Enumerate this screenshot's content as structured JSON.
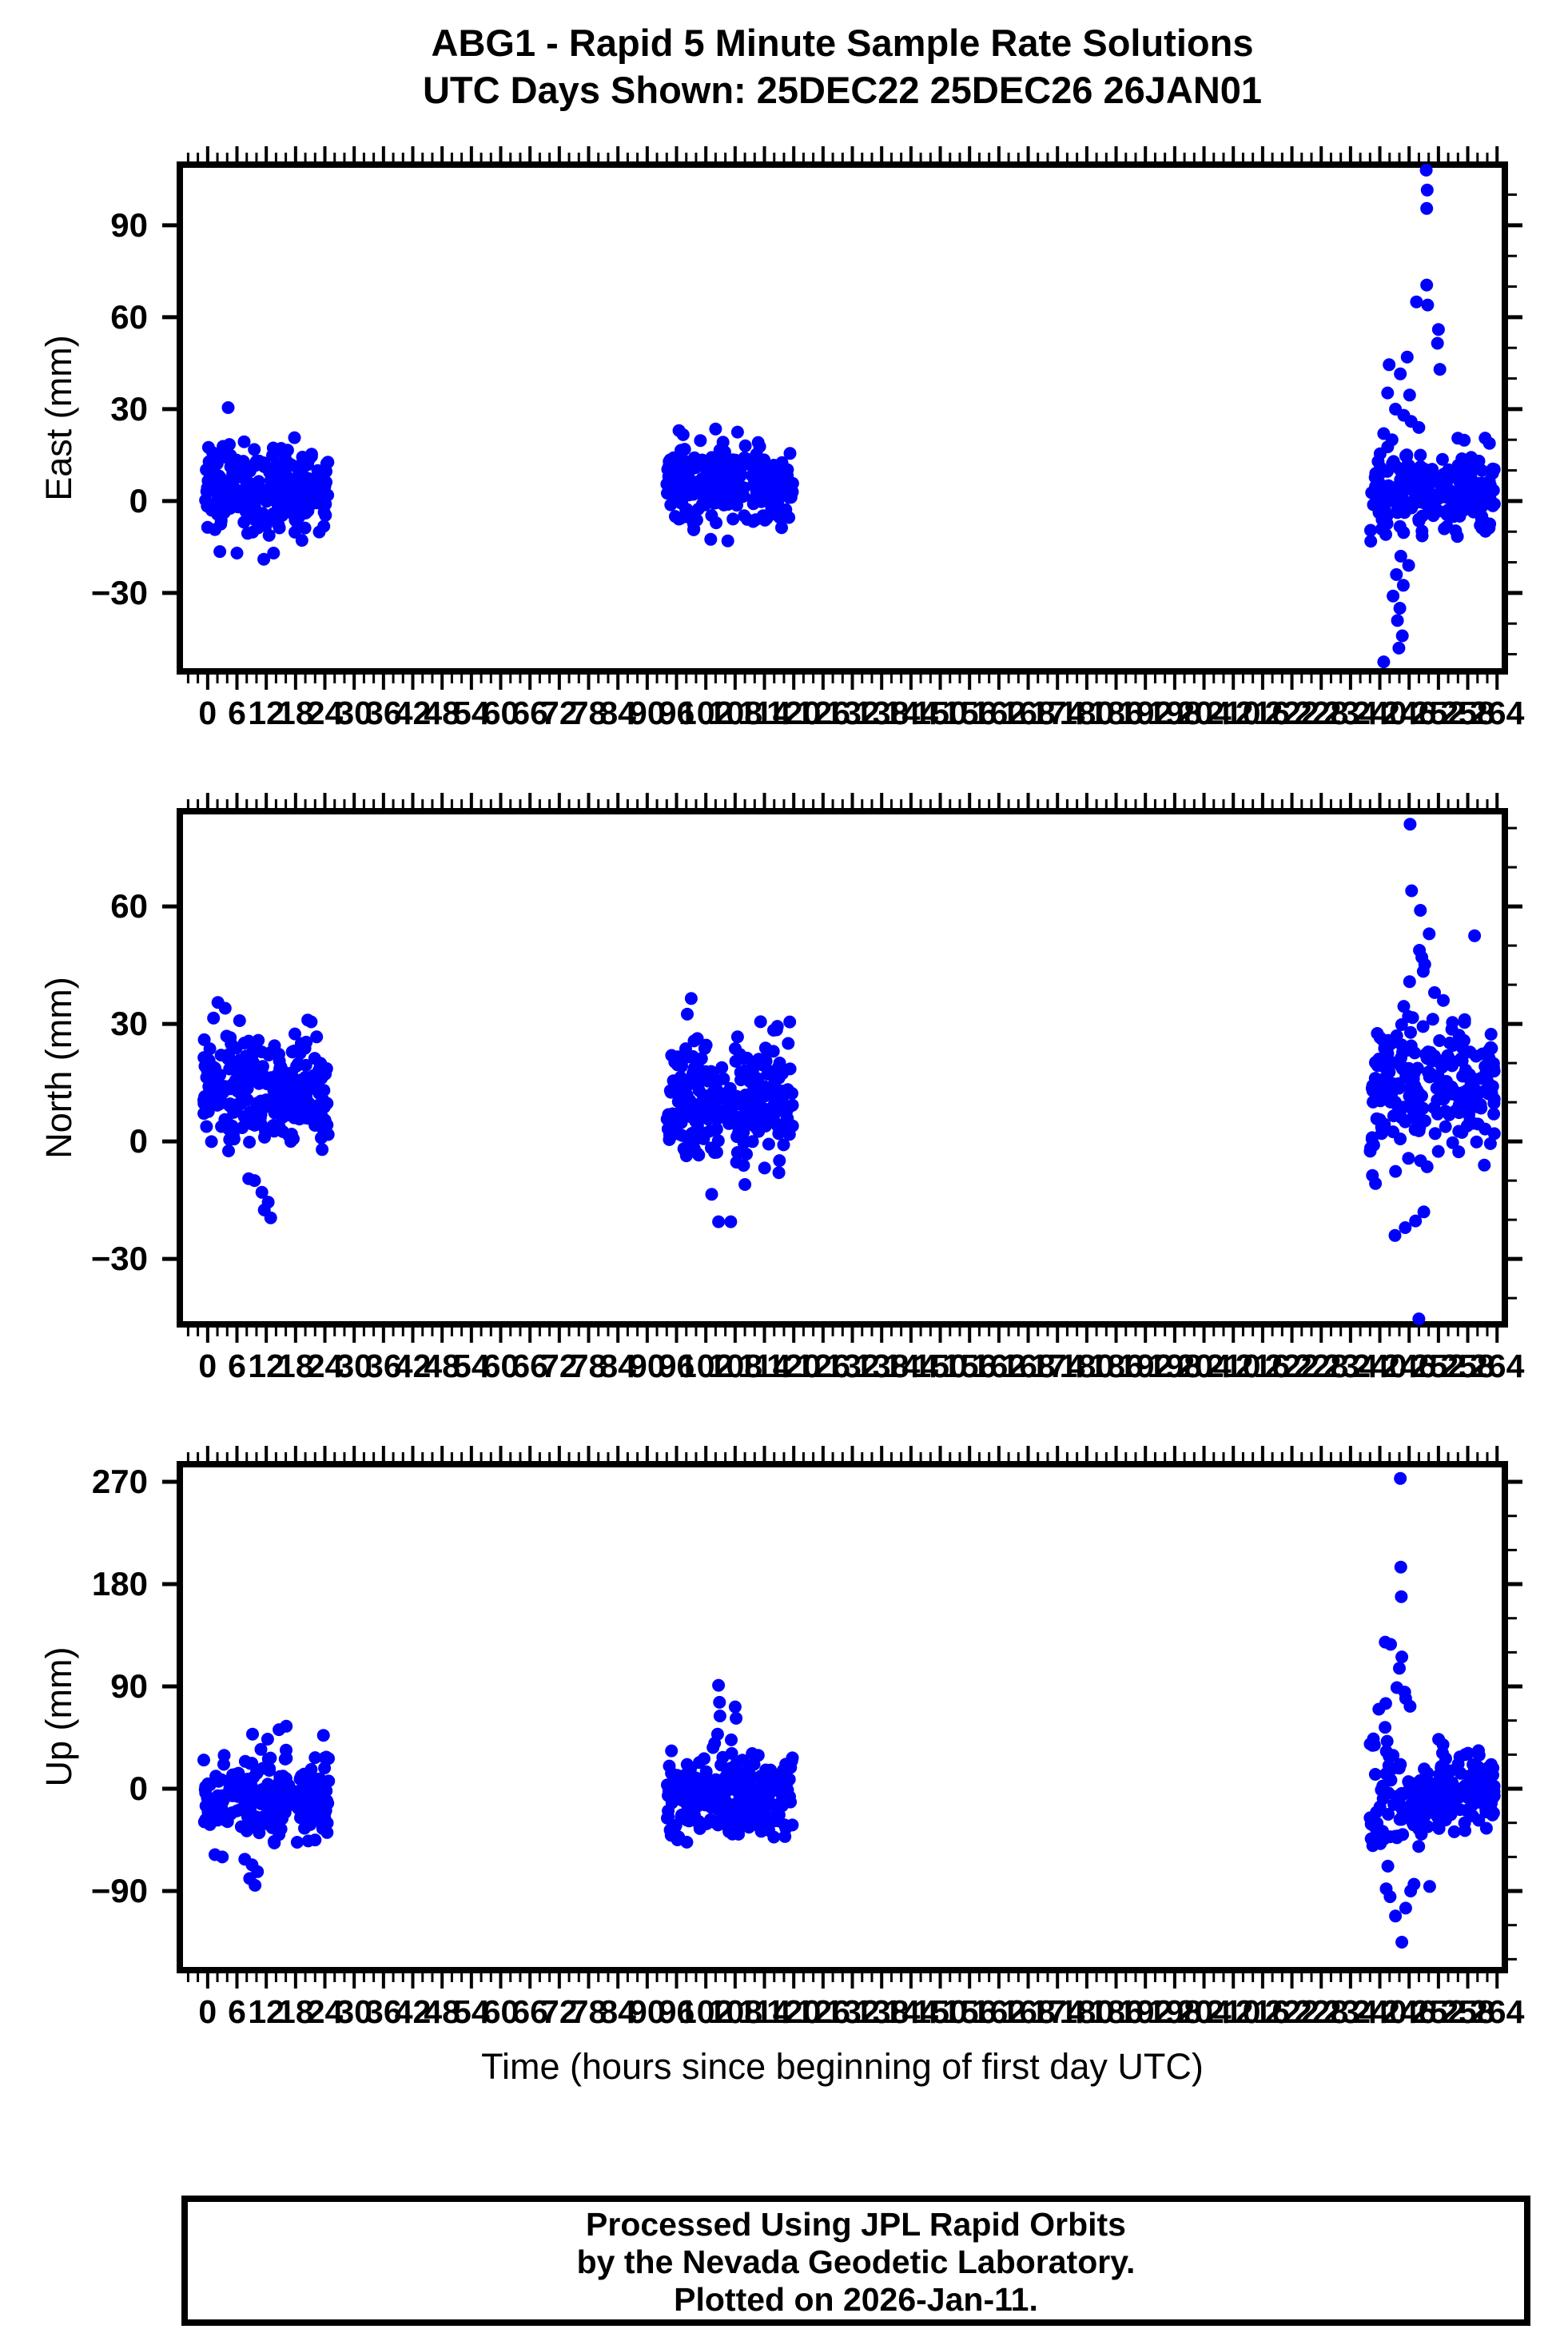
{
  "title": {
    "line1": "ABG1 - Rapid 5 Minute Sample Rate Solutions",
    "line2": "UTC Days Shown:  25DEC22 25DEC26 26JAN01"
  },
  "xlabel": "Time (hours since beginning of first day UTC)",
  "footer": {
    "line1": "Processed Using JPL Rapid Orbits",
    "line2": "by the Nevada Geodetic Laboratory.",
    "line3": "Plotted on 2026-Jan-11."
  },
  "colors": {
    "point": "#0000ff",
    "frame": "#000000",
    "background": "#ffffff"
  },
  "x_axis": {
    "major_tick_values": [
      0,
      6,
      12,
      18,
      24,
      30,
      36,
      42,
      48,
      54,
      60,
      66,
      72,
      78,
      84,
      90,
      96,
      102,
      108,
      114,
      120,
      126,
      132,
      138,
      144,
      150,
      156,
      162,
      168,
      174,
      180,
      186,
      192,
      198,
      204,
      210,
      216,
      222,
      228,
      234,
      240,
      246,
      252,
      258,
      264
    ],
    "major_tick_labels": [
      "0",
      "6",
      "12",
      "18",
      "24",
      "30",
      "36",
      "42",
      "48",
      "54",
      "60",
      "66",
      "72",
      "78",
      "84",
      "90",
      "96",
      "102",
      "108",
      "114",
      "120",
      "126",
      "132",
      "138",
      "144",
      "150",
      "156",
      "162",
      "168",
      "174",
      "180",
      "186",
      "192",
      "198",
      "204",
      "210",
      "216",
      "222",
      "228",
      "234",
      "240",
      "246",
      "252",
      "258",
      "264"
    ],
    "minor_step": 2
  },
  "chart_data": [
    {
      "type": "scatter",
      "ylabel": "East (mm)",
      "xlim": [
        -5.7,
        265.6
      ],
      "ylim": [
        -55.6,
        109.8
      ],
      "y_ticks": {
        "values": [
          -30,
          0,
          30,
          60,
          90
        ],
        "labels": [
          "−30",
          "0",
          "30",
          "60",
          "90"
        ],
        "minor_step": 10
      },
      "clusters": [
        {
          "seed": 101,
          "x": [
            -0.8,
            24.8
          ],
          "n": 265,
          "center": 4.0,
          "sd": 7.0,
          "clip": [
            -13,
            23
          ]
        },
        {
          "seed": 102,
          "x": [
            94.0,
            119.8
          ],
          "n": 265,
          "center": 5.0,
          "sd": 6.5,
          "clip": [
            -12,
            22
          ]
        },
        {
          "seed": 103,
          "x": [
            238.0,
            263.5
          ],
          "n": 240,
          "center": 3.0,
          "sd": 8.0,
          "sd_end": 5.5,
          "clip": [
            -15,
            21
          ]
        }
      ],
      "outliers": [
        [
          4.2,
          30.5
        ],
        [
          2.5,
          -16.5
        ],
        [
          6.0,
          -17.0
        ],
        [
          13.5,
          -17.0
        ],
        [
          11.5,
          -19.0
        ],
        [
          96.5,
          23.0
        ],
        [
          104.0,
          23.5
        ],
        [
          108.5,
          22.5
        ],
        [
          103.0,
          -12.5
        ],
        [
          106.5,
          -13.0
        ],
        [
          249.5,
          108.0
        ],
        [
          249.7,
          101.5
        ],
        [
          249.6,
          95.5
        ],
        [
          249.6,
          70.5
        ],
        [
          247.5,
          65.0
        ],
        [
          249.8,
          64.0
        ],
        [
          252.0,
          56.0
        ],
        [
          251.8,
          51.5
        ],
        [
          245.6,
          47.0
        ],
        [
          241.9,
          44.5
        ],
        [
          252.3,
          43.0
        ],
        [
          244.2,
          41.5
        ],
        [
          241.6,
          35.3
        ],
        [
          246.1,
          34.6
        ],
        [
          243.2,
          30.0
        ],
        [
          244.9,
          28.0
        ],
        [
          246.4,
          26.0
        ],
        [
          248.0,
          24.0
        ],
        [
          240.8,
          22.0
        ],
        [
          242.5,
          20.0
        ],
        [
          244.3,
          -18.0
        ],
        [
          245.9,
          -21.0
        ],
        [
          243.4,
          -24.0
        ],
        [
          244.8,
          -27.5
        ],
        [
          242.7,
          -31.0
        ],
        [
          244.1,
          -35.0
        ],
        [
          243.6,
          -39.0
        ],
        [
          244.6,
          -44.0
        ],
        [
          243.9,
          -48.0
        ],
        [
          240.8,
          -52.5
        ]
      ]
    },
    {
      "type": "scatter",
      "ylabel": "North (mm)",
      "xlim": [
        -5.7,
        265.6
      ],
      "ylim": [
        -46.7,
        84.3
      ],
      "y_ticks": {
        "values": [
          -30,
          0,
          30,
          60
        ],
        "labels": [
          "−30",
          "0",
          "30",
          "60"
        ],
        "minor_step": 10
      },
      "clusters": [
        {
          "seed": 201,
          "x": [
            -0.8,
            24.8
          ],
          "n": 265,
          "center": 13.0,
          "sd": 7.5,
          "clip": [
            -7,
            32
          ]
        },
        {
          "seed": 202,
          "x": [
            94.0,
            119.8
          ],
          "n": 265,
          "center": 10.0,
          "sd": 7.5,
          "clip": [
            -9,
            31
          ]
        },
        {
          "seed": 203,
          "x": [
            238.0,
            263.5
          ],
          "n": 240,
          "center": 14.0,
          "sd": 9.5,
          "sd_end": 7.0,
          "clip": [
            -12,
            33
          ]
        }
      ],
      "outliers": [
        [
          2.1,
          35.5
        ],
        [
          3.6,
          34.0
        ],
        [
          1.2,
          31.5
        ],
        [
          20.5,
          31.0
        ],
        [
          8.4,
          -9.5
        ],
        [
          9.6,
          -10.0
        ],
        [
          11.1,
          -13.0
        ],
        [
          12.4,
          -15.5
        ],
        [
          11.6,
          -17.5
        ],
        [
          12.9,
          -19.5
        ],
        [
          99.0,
          36.5
        ],
        [
          98.2,
          32.5
        ],
        [
          116.5,
          28.5
        ],
        [
          104.6,
          -20.5
        ],
        [
          107.1,
          -20.5
        ],
        [
          103.2,
          -13.5
        ],
        [
          110.0,
          -11.0
        ],
        [
          246.2,
          81.0
        ],
        [
          246.5,
          64.0
        ],
        [
          248.3,
          59.0
        ],
        [
          250.1,
          53.0
        ],
        [
          259.4,
          52.5
        ],
        [
          248.1,
          48.8
        ],
        [
          248.6,
          47.0
        ],
        [
          249.2,
          45.2
        ],
        [
          248.9,
          43.4
        ],
        [
          246.1,
          40.8
        ],
        [
          251.2,
          38.0
        ],
        [
          253.0,
          36.0
        ],
        [
          244.9,
          34.5
        ],
        [
          243.1,
          -24.0
        ],
        [
          245.2,
          -22.0
        ],
        [
          247.3,
          -20.3
        ],
        [
          249.0,
          -18.0
        ],
        [
          248.0,
          -45.3
        ]
      ]
    },
    {
      "type": "scatter",
      "ylabel": "Up (mm)",
      "xlim": [
        -5.7,
        265.6
      ],
      "ylim": [
        -159.6,
        285.5
      ],
      "y_ticks": {
        "values": [
          -90,
          0,
          90,
          180,
          270
        ],
        "labels": [
          "−90",
          "0",
          "90",
          "180",
          "270"
        ],
        "minor_step": 30
      },
      "clusters": [
        {
          "seed": 301,
          "x": [
            -0.8,
            24.8
          ],
          "n": 265,
          "center": -8.0,
          "sd": 20.0,
          "clip": [
            -52,
            55
          ]
        },
        {
          "seed": 302,
          "x": [
            94.0,
            119.8
          ],
          "n": 265,
          "center": -5.0,
          "sd": 17.0,
          "clip": [
            -44,
            38
          ]
        },
        {
          "seed": 303,
          "x": [
            238.0,
            263.5
          ],
          "n": 240,
          "center": -5.0,
          "sd": 28.0,
          "sd_end": 14.0,
          "clip": [
            -82,
            72
          ]
        }
      ],
      "outliers": [
        [
          7.6,
          -62.0
        ],
        [
          9.1,
          -67.0
        ],
        [
          10.2,
          -73.0
        ],
        [
          8.6,
          -79.0
        ],
        [
          9.7,
          -85.0
        ],
        [
          14.6,
          52.0
        ],
        [
          16.1,
          55.0
        ],
        [
          1.5,
          -58.0
        ],
        [
          3.0,
          -60.0
        ],
        [
          104.6,
          91.0
        ],
        [
          104.8,
          76.0
        ],
        [
          104.9,
          64.0
        ],
        [
          108.0,
          72.0
        ],
        [
          108.2,
          62.0
        ],
        [
          104.4,
          48.0
        ],
        [
          107.2,
          43.0
        ],
        [
          103.8,
          40.0
        ],
        [
          96.2,
          -45.0
        ],
        [
          98.1,
          -47.0
        ],
        [
          118.2,
          -42.0
        ],
        [
          94.9,
          -41.0
        ],
        [
          244.2,
          273.0
        ],
        [
          244.3,
          195.0
        ],
        [
          244.4,
          169.0
        ],
        [
          241.1,
          129.0
        ],
        [
          242.2,
          127.0
        ],
        [
          244.5,
          116.0
        ],
        [
          244.0,
          106.0
        ],
        [
          243.5,
          89.0
        ],
        [
          245.1,
          85.0
        ],
        [
          245.3,
          79.5
        ],
        [
          241.2,
          75.0
        ],
        [
          246.2,
          72.5
        ],
        [
          239.8,
          70.0
        ],
        [
          244.5,
          -135.0
        ],
        [
          243.2,
          -112.0
        ],
        [
          245.3,
          -105.0
        ],
        [
          242.1,
          -95.0
        ],
        [
          246.3,
          -90.0
        ],
        [
          241.3,
          -88.0
        ],
        [
          250.2,
          -86.0
        ],
        [
          247.0,
          -84.0
        ]
      ]
    }
  ]
}
